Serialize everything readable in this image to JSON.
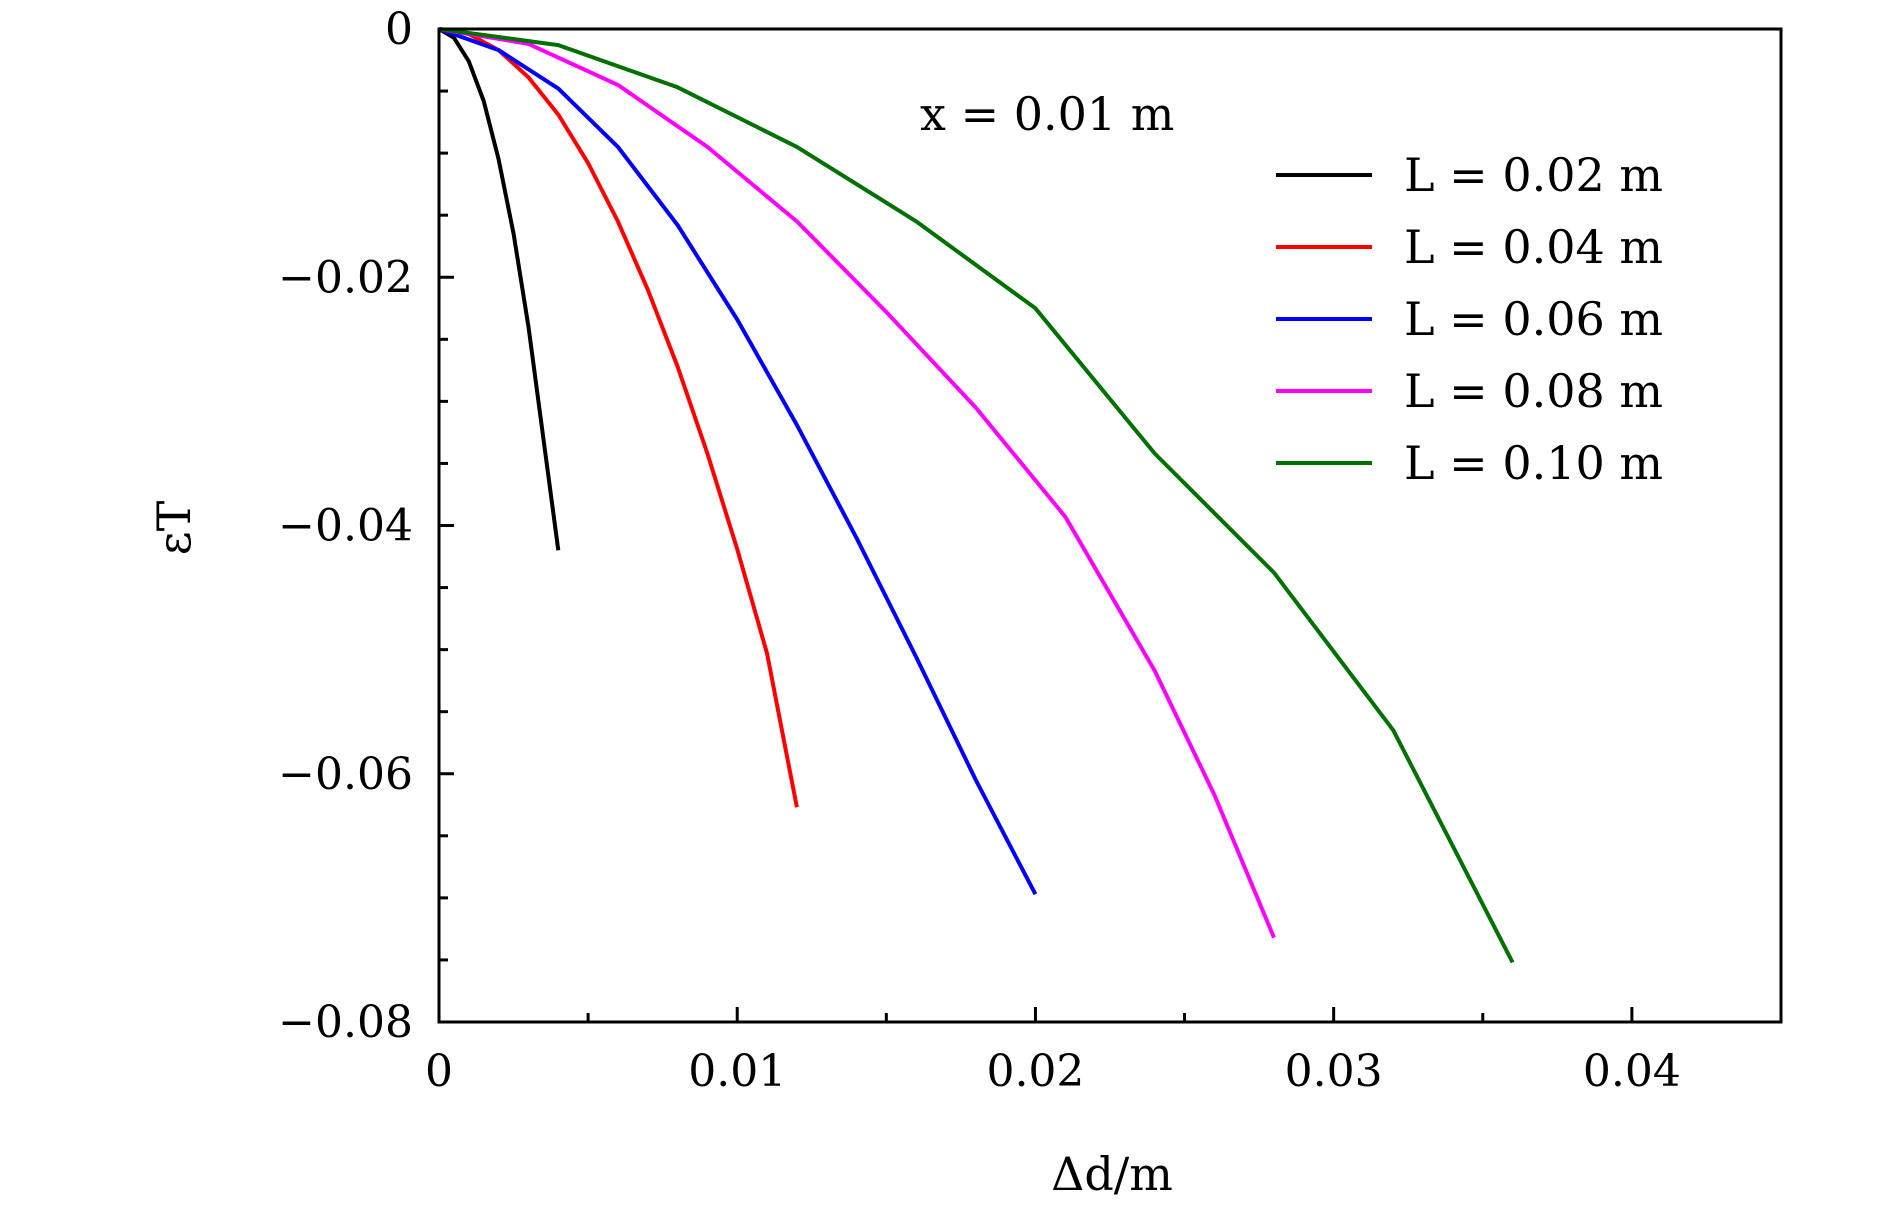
{
  "chart_data": {
    "type": "line",
    "title": "",
    "xlabel": "Δd/m",
    "ylabel": "εT",
    "xlim": [
      0,
      0.045
    ],
    "ylim": [
      -0.08,
      0
    ],
    "x_ticks": [
      0,
      0.01,
      0.02,
      0.03,
      0.04
    ],
    "x_tick_labels": [
      "0",
      "0.01",
      "0.02",
      "0.03",
      "0.04"
    ],
    "y_ticks": [
      0,
      -0.02,
      -0.04,
      -0.06,
      -0.08
    ],
    "y_tick_labels": [
      "0",
      "−0.02",
      "−0.04",
      "−0.06",
      "−0.08"
    ],
    "grid": false,
    "legend_position": "top-right",
    "annotation": "x = 0.01 m",
    "series": [
      {
        "name": "L = 0.02 m",
        "color": "#000000",
        "x": [
          0,
          0.0005,
          0.001,
          0.0015,
          0.002,
          0.0025,
          0.003,
          0.0035,
          0.004
        ],
        "y": [
          0,
          -0.0007,
          -0.0026,
          -0.0058,
          -0.0105,
          -0.0165,
          -0.024,
          -0.033,
          -0.042
        ]
      },
      {
        "name": "L = 0.04 m",
        "color": "#ff0000",
        "x": [
          0,
          0.001,
          0.002,
          0.003,
          0.004,
          0.005,
          0.006,
          0.007,
          0.008,
          0.009,
          0.01,
          0.011,
          0.012
        ],
        "y": [
          0,
          -0.0004,
          -0.0017,
          -0.0039,
          -0.0069,
          -0.0108,
          -0.0155,
          -0.021,
          -0.0272,
          -0.0342,
          -0.0419,
          -0.0503,
          -0.0627
        ]
      },
      {
        "name": "L = 0.06 m",
        "color": "#0000ff",
        "x": [
          0,
          0.002,
          0.004,
          0.006,
          0.008,
          0.01,
          0.012,
          0.014,
          0.016,
          0.018,
          0.02
        ],
        "y": [
          0,
          -0.0017,
          -0.0048,
          -0.0095,
          -0.0158,
          -0.0234,
          -0.0319,
          -0.041,
          -0.0506,
          -0.0605,
          -0.0697
        ]
      },
      {
        "name": "L = 0.08 m",
        "color": "#ff00ff",
        "x": [
          0,
          0.003,
          0.006,
          0.009,
          0.012,
          0.015,
          0.018,
          0.021,
          0.024,
          0.026,
          0.028
        ],
        "y": [
          0,
          -0.0012,
          -0.0045,
          -0.0095,
          -0.0155,
          -0.0228,
          -0.0305,
          -0.0393,
          -0.0517,
          -0.0617,
          -0.0732
        ]
      },
      {
        "name": "L = 0.10 m",
        "color": "#007000",
        "x": [
          0,
          0.004,
          0.008,
          0.012,
          0.016,
          0.02,
          0.024,
          0.028,
          0.032,
          0.036
        ],
        "y": [
          0,
          -0.0013,
          -0.0047,
          -0.0095,
          -0.0155,
          -0.0225,
          -0.0342,
          -0.0438,
          -0.0565,
          -0.0752
        ]
      }
    ]
  }
}
